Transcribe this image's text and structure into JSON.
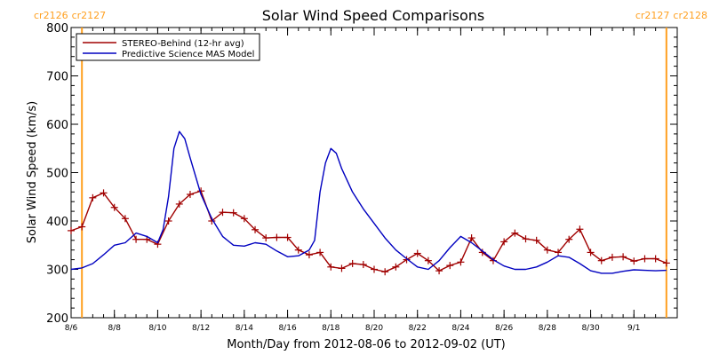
{
  "chart_data": {
    "type": "line",
    "title": "Solar Wind Speed Comparisons",
    "xlabel": "Month/Day from 2012-08-06 to 2012-09-02 (UT)",
    "ylabel": "Solar Wind Speed (km/s)",
    "xlim": [
      "2012-08-06T00:00",
      "2012-09-03T00:00"
    ],
    "ylim": [
      200,
      800
    ],
    "x_ticks": [
      {
        "date": "2012-08-06",
        "label": "8/6"
      },
      {
        "date": "2012-08-08",
        "label": "8/8"
      },
      {
        "date": "2012-08-10",
        "label": "8/10"
      },
      {
        "date": "2012-08-12",
        "label": "8/12"
      },
      {
        "date": "2012-08-14",
        "label": "8/14"
      },
      {
        "date": "2012-08-16",
        "label": "8/16"
      },
      {
        "date": "2012-08-18",
        "label": "8/18"
      },
      {
        "date": "2012-08-20",
        "label": "8/20"
      },
      {
        "date": "2012-08-22",
        "label": "8/22"
      },
      {
        "date": "2012-08-24",
        "label": "8/24"
      },
      {
        "date": "2012-08-26",
        "label": "8/26"
      },
      {
        "date": "2012-08-28",
        "label": "8/28"
      },
      {
        "date": "2012-08-30",
        "label": "8/30"
      },
      {
        "date": "2012-09-01",
        "label": "9/1"
      }
    ],
    "y_ticks": [
      200,
      300,
      400,
      500,
      600,
      700,
      800
    ],
    "grid": false,
    "legend": {
      "position": "top-left",
      "boxed": true
    },
    "rotation_markers": [
      {
        "date": "2012-08-06T12:00",
        "labels": [
          "cr2126",
          "cr2127"
        ],
        "color": "#FFA020",
        "label_side": "left"
      },
      {
        "date": "2012-09-02T12:00",
        "labels": [
          "cr2127",
          "cr2128"
        ],
        "color": "#FFA020",
        "label_side": "right"
      }
    ],
    "series": [
      {
        "name": "STEREO-Behind (12-hr avg)",
        "color": "#A00000",
        "marker": "plus",
        "points": [
          [
            "2012-08-06T00:00",
            380
          ],
          [
            "2012-08-06T12:00",
            388
          ],
          [
            "2012-08-07T00:00",
            448
          ],
          [
            "2012-08-07T12:00",
            458
          ],
          [
            "2012-08-08T00:00",
            428
          ],
          [
            "2012-08-08T12:00",
            405
          ],
          [
            "2012-08-09T00:00",
            362
          ],
          [
            "2012-08-09T12:00",
            362
          ],
          [
            "2012-08-10T00:00",
            352
          ],
          [
            "2012-08-10T12:00",
            400
          ],
          [
            "2012-08-11T00:00",
            435
          ],
          [
            "2012-08-11T12:00",
            455
          ],
          [
            "2012-08-12T00:00",
            462
          ],
          [
            "2012-08-12T12:00",
            400
          ],
          [
            "2012-08-13T00:00",
            418
          ],
          [
            "2012-08-13T12:00",
            417
          ],
          [
            "2012-08-14T00:00",
            405
          ],
          [
            "2012-08-14T12:00",
            382
          ],
          [
            "2012-08-15T00:00",
            365
          ],
          [
            "2012-08-15T12:00",
            366
          ],
          [
            "2012-08-16T00:00",
            366
          ],
          [
            "2012-08-16T12:00",
            340
          ],
          [
            "2012-08-17T00:00",
            330
          ],
          [
            "2012-08-17T12:00",
            335
          ],
          [
            "2012-08-18T00:00",
            305
          ],
          [
            "2012-08-18T12:00",
            302
          ],
          [
            "2012-08-19T00:00",
            312
          ],
          [
            "2012-08-19T12:00",
            310
          ],
          [
            "2012-08-20T00:00",
            300
          ],
          [
            "2012-08-20T12:00",
            295
          ],
          [
            "2012-08-21T00:00",
            305
          ],
          [
            "2012-08-21T12:00",
            320
          ],
          [
            "2012-08-22T00:00",
            333
          ],
          [
            "2012-08-22T12:00",
            318
          ],
          [
            "2012-08-23T00:00",
            297
          ],
          [
            "2012-08-23T12:00",
            308
          ],
          [
            "2012-08-24T00:00",
            315
          ],
          [
            "2012-08-24T12:00",
            365
          ],
          [
            "2012-08-25T00:00",
            335
          ],
          [
            "2012-08-25T12:00",
            318
          ],
          [
            "2012-08-26T00:00",
            357
          ],
          [
            "2012-08-26T12:00",
            375
          ],
          [
            "2012-08-27T00:00",
            363
          ],
          [
            "2012-08-27T12:00",
            360
          ],
          [
            "2012-08-28T00:00",
            340
          ],
          [
            "2012-08-28T12:00",
            335
          ],
          [
            "2012-08-29T00:00",
            362
          ],
          [
            "2012-08-29T12:00",
            383
          ],
          [
            "2012-08-30T00:00",
            335
          ],
          [
            "2012-08-30T12:00",
            318
          ],
          [
            "2012-08-31T00:00",
            325
          ],
          [
            "2012-08-31T12:00",
            326
          ],
          [
            "2012-09-01T00:00",
            317
          ],
          [
            "2012-09-01T12:00",
            322
          ],
          [
            "2012-09-02T00:00",
            322
          ],
          [
            "2012-09-02T12:00",
            313
          ]
        ]
      },
      {
        "name": "Predictive Science MAS Model",
        "color": "#0000C0",
        "marker": "none",
        "points": [
          [
            "2012-08-06T00:00",
            300
          ],
          [
            "2012-08-06T12:00",
            303
          ],
          [
            "2012-08-07T00:00",
            312
          ],
          [
            "2012-08-07T12:00",
            330
          ],
          [
            "2012-08-08T00:00",
            350
          ],
          [
            "2012-08-08T12:00",
            355
          ],
          [
            "2012-08-09T00:00",
            375
          ],
          [
            "2012-08-09T12:00",
            368
          ],
          [
            "2012-08-10T00:00",
            355
          ],
          [
            "2012-08-10T06:00",
            382
          ],
          [
            "2012-08-10T12:00",
            450
          ],
          [
            "2012-08-10T18:00",
            550
          ],
          [
            "2012-08-11T00:00",
            585
          ],
          [
            "2012-08-11T06:00",
            570
          ],
          [
            "2012-08-11T12:00",
            530
          ],
          [
            "2012-08-12T00:00",
            455
          ],
          [
            "2012-08-12T12:00",
            405
          ],
          [
            "2012-08-13T00:00",
            368
          ],
          [
            "2012-08-13T12:00",
            350
          ],
          [
            "2012-08-14T00:00",
            348
          ],
          [
            "2012-08-14T12:00",
            355
          ],
          [
            "2012-08-15T00:00",
            352
          ],
          [
            "2012-08-15T12:00",
            338
          ],
          [
            "2012-08-16T00:00",
            326
          ],
          [
            "2012-08-16T12:00",
            328
          ],
          [
            "2012-08-17T00:00",
            340
          ],
          [
            "2012-08-17T06:00",
            360
          ],
          [
            "2012-08-17T12:00",
            460
          ],
          [
            "2012-08-17T18:00",
            520
          ],
          [
            "2012-08-18T00:00",
            550
          ],
          [
            "2012-08-18T06:00",
            540
          ],
          [
            "2012-08-18T12:00",
            508
          ],
          [
            "2012-08-19T00:00",
            460
          ],
          [
            "2012-08-19T12:00",
            425
          ],
          [
            "2012-08-20T00:00",
            395
          ],
          [
            "2012-08-20T12:00",
            365
          ],
          [
            "2012-08-21T00:00",
            340
          ],
          [
            "2012-08-21T12:00",
            322
          ],
          [
            "2012-08-22T00:00",
            305
          ],
          [
            "2012-08-22T12:00",
            300
          ],
          [
            "2012-08-23T00:00",
            318
          ],
          [
            "2012-08-23T12:00",
            345
          ],
          [
            "2012-08-24T00:00",
            368
          ],
          [
            "2012-08-24T12:00",
            355
          ],
          [
            "2012-08-25T00:00",
            338
          ],
          [
            "2012-08-25T12:00",
            320
          ],
          [
            "2012-08-26T00:00",
            307
          ],
          [
            "2012-08-26T12:00",
            300
          ],
          [
            "2012-08-27T00:00",
            300
          ],
          [
            "2012-08-27T12:00",
            305
          ],
          [
            "2012-08-28T00:00",
            315
          ],
          [
            "2012-08-28T12:00",
            328
          ],
          [
            "2012-08-29T00:00",
            325
          ],
          [
            "2012-08-29T12:00",
            312
          ],
          [
            "2012-08-30T00:00",
            297
          ],
          [
            "2012-08-30T12:00",
            292
          ],
          [
            "2012-08-31T00:00",
            292
          ],
          [
            "2012-08-31T12:00",
            296
          ],
          [
            "2012-09-01T00:00",
            299
          ],
          [
            "2012-09-01T12:00",
            298
          ],
          [
            "2012-09-02T00:00",
            297
          ],
          [
            "2012-09-02T12:00",
            298
          ]
        ]
      }
    ]
  }
}
